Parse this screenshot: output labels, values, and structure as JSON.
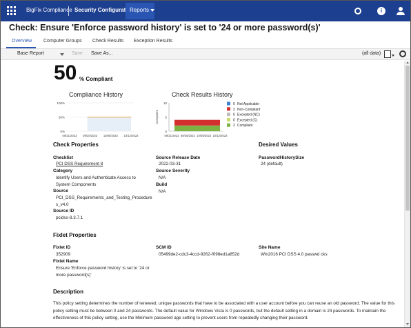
{
  "nav": {
    "brand": "BigFix Compliance",
    "section": "Security Configuration",
    "reports": "Reports"
  },
  "page_title": "Check: Ensure 'Enforce password history' is set to '24 or more password(s)'",
  "tabs": [
    "Overview",
    "Computer Groups",
    "Check Results",
    "Exception Results"
  ],
  "toolbar": {
    "report": "Base Report",
    "save": "Save",
    "save_as": "Save As...",
    "filter": "(all data)"
  },
  "summary": {
    "percent": "50",
    "percent_label": "% Compliant"
  },
  "compliance_history": {
    "title": "Compliance History",
    "chart_data": {
      "type": "line",
      "x": [
        "09/21/2023",
        "09/28/2023",
        "10/05/2023",
        "10/12/2023"
      ],
      "y_ticks": [
        "100%",
        "50%",
        "0%"
      ],
      "series": [
        {
          "values": [
            50,
            50,
            50,
            50
          ]
        }
      ],
      "ylim": [
        0,
        100
      ]
    }
  },
  "check_results_history": {
    "title": "Check Results History",
    "ylabel": "Computers",
    "chart_data": {
      "type": "area",
      "x": [
        "09/21/2023",
        "09/28/2023",
        "10/05/2023",
        "10/12/2023"
      ],
      "y_ticks": [
        "10",
        "5",
        "0"
      ],
      "ylim": [
        0,
        10
      ],
      "series": [
        {
          "name": "Compliant",
          "values": [
            2,
            2,
            2,
            2
          ],
          "color": "#7cb342"
        },
        {
          "name": "Non-Compliant",
          "values": [
            2,
            2,
            2,
            2
          ],
          "color": "#d32f2f"
        }
      ]
    },
    "legend": [
      {
        "count": "0",
        "label": "Not Applicable",
        "color": "#3f7fd0"
      },
      {
        "count": "2",
        "label": "Non-Compliant",
        "color": "#d32f2f"
      },
      {
        "count": "0",
        "label": "Excepted (NC)",
        "color": "#bdbdbd"
      },
      {
        "count": "0",
        "label": "Excepted (C)",
        "color": "#c6e06a"
      },
      {
        "count": "2",
        "label": "Compliant",
        "color": "#7cb342"
      }
    ]
  },
  "check_properties": {
    "title": "Check Properties",
    "checklist_label": "Checklist",
    "checklist_value": "PCI DSS Requirement 8",
    "category_label": "Category",
    "category_value": "Identify Users and Authenticate Access to System Components",
    "source_label": "Source",
    "source_value": "PCI_DSS_Requirements_and_Testing_Procedures_v4.0",
    "source_id_label": "Source ID",
    "source_id_value": "pcidss-8.3.7.1",
    "release_label": "Source Release Date",
    "release_value": "2022-03-31",
    "severity_label": "Source Severity",
    "severity_value": "N/A",
    "build_label": "Build",
    "build_value": "N/A"
  },
  "desired_values": {
    "title": "Desired Values",
    "name": "PasswordHistorySize",
    "value": "24 (default)"
  },
  "fixlet_properties": {
    "title": "Fixlet Properties",
    "fixlet_id_label": "Fixlet ID",
    "fixlet_id_value": "352909",
    "fixlet_name_label": "Fixlet Name",
    "fixlet_name_value": "Ensure 'Enforce password history' is set to '24 or more password(s)'",
    "scm_id_label": "SCM ID",
    "scm_id_value": "05499de2-cdc3-4ccd-9262-f098ed1a852d",
    "site_label": "Site Name",
    "site_value": "Win2016 PCI DSS 4.0 passwd cks"
  },
  "description": {
    "title": "Description",
    "text": "This policy setting determines the number of renewed, unique passwords that have to be associated with a user account before you can reuse an old password. The value for this policy setting must be between 0 and 24 passwords. The default value for Windows Vista is 0 passwords, but the default setting in a domain is 24 passwords. To maintain the effectiveness of this policy setting, use the Minimum password age setting to prevent users from repeatedly changing their password."
  },
  "colors": {
    "nav_bg": "#1d3f8f",
    "accent": "#2b55b3",
    "line_series": "#e8a33a"
  }
}
